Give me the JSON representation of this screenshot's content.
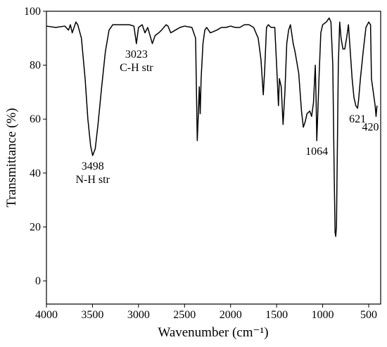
{
  "chart_data": {
    "type": "line",
    "xlabel": "Wavenumber (cm⁻¹)",
    "ylabel": "Transmittance (%)",
    "xlim": [
      4000,
      370
    ],
    "ylim": [
      -8.6,
      100
    ],
    "xticks": [
      4000,
      3500,
      3000,
      2500,
      2000,
      1500,
      1000,
      500
    ],
    "yticks": [
      0,
      20,
      40,
      60,
      80,
      100
    ],
    "grid": false,
    "series": [
      {
        "color": "#000000",
        "x": [
          4000,
          3900,
          3800,
          3760,
          3740,
          3720,
          3700,
          3680,
          3660,
          3620,
          3580,
          3550,
          3520,
          3498,
          3470,
          3440,
          3400,
          3360,
          3320,
          3280,
          3200,
          3100,
          3050,
          3023,
          3000,
          2960,
          2930,
          2900,
          2850,
          2820,
          2780,
          2750,
          2700,
          2680,
          2650,
          2600,
          2550,
          2500,
          2420,
          2380,
          2362,
          2350,
          2340,
          2330,
          2320,
          2300,
          2280,
          2260,
          2220,
          2150,
          2100,
          2050,
          2000,
          1950,
          1900,
          1850,
          1800,
          1750,
          1700,
          1670,
          1645,
          1630,
          1610,
          1590,
          1560,
          1520,
          1500,
          1480,
          1470,
          1450,
          1430,
          1410,
          1390,
          1370,
          1350,
          1320,
          1300,
          1260,
          1230,
          1210,
          1190,
          1170,
          1140,
          1120,
          1100,
          1080,
          1070,
          1064,
          1055,
          1040,
          1020,
          1000,
          960,
          930,
          910,
          890,
          875,
          865,
          858,
          850,
          840,
          830,
          815,
          800,
          780,
          760,
          740,
          720,
          700,
          680,
          660,
          640,
          621,
          610,
          590,
          560,
          530,
          500,
          480,
          470,
          450,
          430,
          420,
          410
        ],
        "values": [
          94.5,
          94,
          94.5,
          93,
          95,
          92,
          94,
          96,
          95,
          90,
          75,
          60,
          50,
          46.5,
          49,
          58,
          72,
          85,
          93,
          95,
          95,
          95,
          94.5,
          88,
          94,
          95,
          92,
          94,
          88,
          91,
          92,
          93,
          95,
          94.5,
          92,
          93,
          94,
          94.5,
          94,
          90,
          52,
          62,
          72,
          62,
          75,
          88,
          93,
          94,
          92,
          93,
          94,
          94,
          94.5,
          94,
          94,
          95,
          95,
          94,
          90,
          82,
          69,
          78,
          94,
          95,
          94,
          94,
          80,
          65,
          75,
          72,
          58,
          70,
          88,
          93,
          95,
          88,
          85,
          77,
          63,
          57,
          59,
          62,
          63,
          61,
          66,
          80,
          65,
          52,
          60,
          75,
          92,
          95,
          96,
          97.5,
          96,
          80,
          40,
          18,
          16.5,
          20,
          50,
          80,
          96,
          90,
          86,
          86,
          90,
          95,
          85,
          75,
          68,
          65,
          64,
          67,
          75,
          85,
          94,
          96,
          95,
          75,
          70,
          65,
          61,
          65
        ]
      }
    ],
    "annotations": [
      {
        "lines": [
          "3498",
          "N-H str"
        ],
        "x": 3498,
        "y": 46.5
      },
      {
        "lines": [
          "3023",
          "C-H str"
        ],
        "x": 3023,
        "y": 88
      },
      {
        "lines": [
          "1064"
        ],
        "x": 1064,
        "y": 52
      },
      {
        "lines": [
          "621"
        ],
        "x": 621,
        "y": 64
      },
      {
        "lines": [
          "420"
        ],
        "x": 420,
        "y": 61
      }
    ]
  }
}
